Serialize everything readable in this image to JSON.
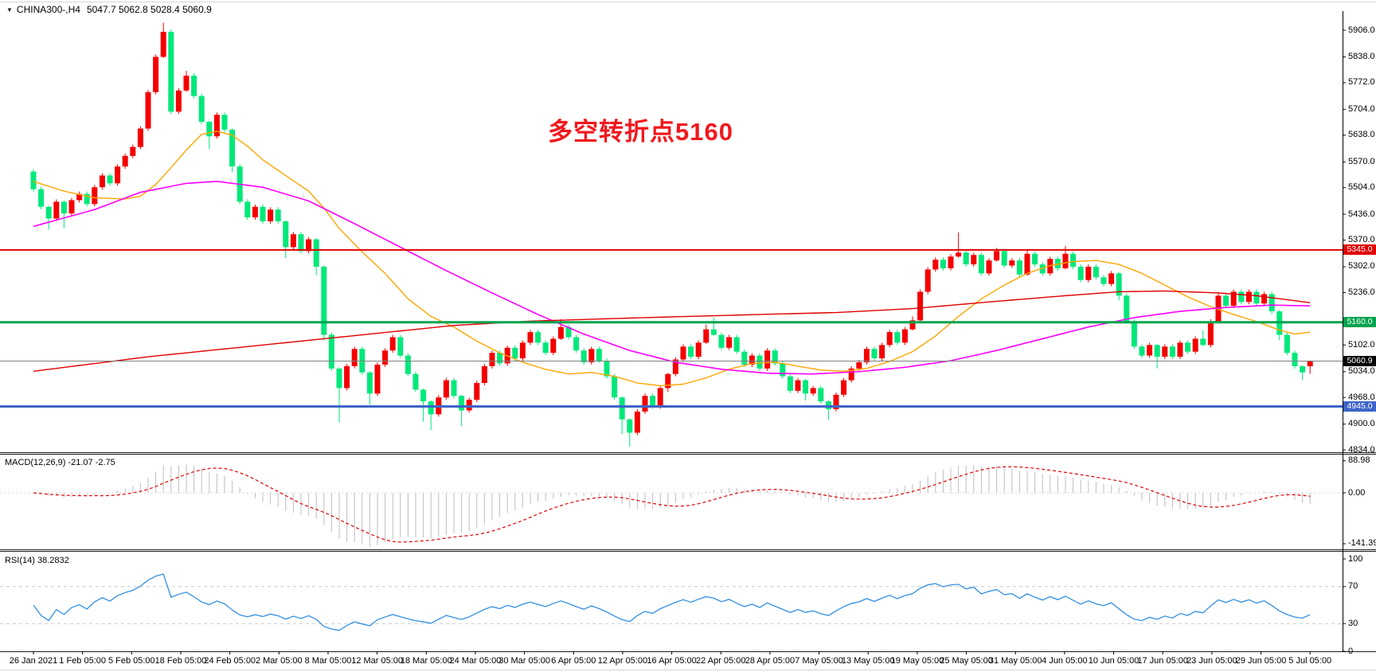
{
  "header": {
    "collapse_icon": "▼",
    "symbol_timeframe": "CHINA300-,H4",
    "ohlc_readout": "5047.7 5062.8 5028.4 5060.9"
  },
  "annotation": {
    "text": "多空转折点5160",
    "color": "#f1181d"
  },
  "macd_panel": {
    "legend": "MACD(12,26,9) -21.07 -2.75",
    "scale_labels": [
      {
        "text": "88.98",
        "value": 88.98
      },
      {
        "text": "0.00",
        "value": 0
      },
      {
        "text": "-141.39",
        "value": -141.39
      }
    ]
  },
  "rsi_panel": {
    "legend": "RSI(14) 38.2832",
    "scale_labels": [
      {
        "text": "100",
        "value": 100
      },
      {
        "text": "70",
        "value": 70
      },
      {
        "text": "30",
        "value": 30
      },
      {
        "text": "0",
        "value": 0
      }
    ]
  },
  "y_axis": {
    "labels": [
      "5906.0",
      "5838.0",
      "5772.0",
      "5704.0",
      "5638.0",
      "5570.0",
      "5504.0",
      "5436.0",
      "5370.0",
      "5302.0",
      "5236.0",
      "5102.0",
      "5034.0",
      "4968.0",
      "4900.0",
      "4834.0"
    ]
  },
  "chart_data": {
    "type": "candlestick",
    "symbol": "CHINA300-",
    "timeframe": "H4",
    "title": "CHINA300-,H4",
    "current_price": 5060.9,
    "price_range": {
      "top": 5906.0,
      "bottom": 4834.0
    },
    "x_labels": [
      "26 Jan 2021",
      "1 Feb 05:00",
      "5 Feb 05:00",
      "18 Feb 05:00",
      "24 Feb 05:00",
      "2 Mar 05:00",
      "8 Mar 05:00",
      "12 Mar 05:00",
      "18 Mar 05:00",
      "24 Mar 05:00",
      "30 Mar 05:00",
      "6 Apr 05:00",
      "12 Apr 05:00",
      "16 Apr 05:00",
      "22 Apr 05:00",
      "28 Apr 05:00",
      "7 May 05:00",
      "13 May 05:00",
      "19 May 05:00",
      "25 May 05:00",
      "31 May 05:00",
      "4 Jun 05:00",
      "10 Jun 05:00",
      "17 Jun 05:00",
      "23 Jun 05:00",
      "29 Jun 05:00",
      "5 Jul 05:00"
    ],
    "levels": [
      {
        "label": "5345.0",
        "value": 5345.0,
        "color": "#e00000",
        "badge": "#e00000",
        "width": 2,
        "role": "resistance-line"
      },
      {
        "label": "5160.0",
        "value": 5160.0,
        "color": "#00a34e",
        "badge": "#00a34e",
        "width": 3,
        "role": "pivot-line"
      },
      {
        "label": "5060.9",
        "value": 5060.9,
        "color": "#808080",
        "badge": "#000000",
        "width": 1,
        "role": "current-price-line"
      },
      {
        "label": "4945.0",
        "value": 4945.0,
        "color": "#3e64c8",
        "badge": "#3e64c8",
        "width": 3,
        "role": "support-line"
      }
    ],
    "colors": {
      "bull": "#f40000",
      "bear": "#00e87a",
      "ma_fast": "#ffa500",
      "ma_mid": "#ff00ff",
      "ma_slow": "#e00000",
      "macd_hist": "#bdbdbd",
      "macd_signal": "#e00000",
      "rsi_line": "#338fe0",
      "rsi_grid": "#c9c9c9"
    },
    "candles": {
      "first_open": 5545,
      "closes": [
        5500,
        5455,
        5425,
        5468,
        5438,
        5472,
        5488,
        5462,
        5505,
        5535,
        5515,
        5558,
        5585,
        5608,
        5655,
        5748,
        5838,
        5902,
        5698,
        5752,
        5790,
        5738,
        5672,
        5635,
        5690,
        5652,
        5558,
        5468,
        5428,
        5455,
        5418,
        5448,
        5418,
        5352,
        5385,
        5342,
        5372,
        5302,
        5128,
        5042,
        4992,
        5048,
        5092,
        5032,
        4978,
        5052,
        5088,
        5122,
        5075,
        5028,
        4988,
        4958,
        4925,
        4968,
        5012,
        4972,
        4935,
        4962,
        5005,
        5048,
        5082,
        5055,
        5095,
        5068,
        5108,
        5135,
        5108,
        5082,
        5118,
        5148,
        5122,
        5088,
        5058,
        5092,
        5062,
        5022,
        4968,
        4912,
        4878,
        4932,
        4972,
        4945,
        4992,
        5028,
        5065,
        5098,
        5072,
        5108,
        5142,
        5128,
        5095,
        5122,
        5085,
        5052,
        5075,
        5042,
        5088,
        5055,
        5022,
        4985,
        5012,
        4978,
        4992,
        4958,
        4938,
        4975,
        5012,
        5042,
        5058,
        5092,
        5068,
        5102,
        5135,
        5108,
        5142,
        5165,
        5238,
        5295,
        5320,
        5298,
        5328,
        5338,
        5308,
        5332,
        5285,
        5318,
        5342,
        5305,
        5318,
        5282,
        5335,
        5308,
        5285,
        5322,
        5298,
        5335,
        5302,
        5268,
        5302,
        5275,
        5258,
        5285,
        5228,
        5162,
        5098,
        5075,
        5102,
        5072,
        5098,
        5072,
        5108,
        5085,
        5118,
        5102,
        5162,
        5228,
        5202,
        5238,
        5212,
        5238,
        5208,
        5232,
        5188,
        5128,
        5082,
        5048,
        5032,
        5060.9
      ],
      "default_wick": [
        6,
        6
      ],
      "wick_overrides": {
        "2": [
          3,
          28
        ],
        "4": [
          3,
          38
        ],
        "17": [
          23,
          3
        ],
        "20": [
          12,
          3
        ],
        "23": [
          3,
          33
        ],
        "26": [
          3,
          15
        ],
        "33": [
          3,
          28
        ],
        "37": [
          3,
          22
        ],
        "38": [
          3,
          15
        ],
        "40": [
          3,
          88
        ],
        "44": [
          3,
          28
        ],
        "51": [
          3,
          52
        ],
        "52": [
          3,
          40
        ],
        "56": [
          3,
          40
        ],
        "69": [
          20,
          3
        ],
        "77": [
          3,
          38
        ],
        "78": [
          3,
          36
        ],
        "83": [
          3,
          10
        ],
        "88": [
          12,
          3
        ],
        "89": [
          30,
          3
        ],
        "101": [
          3,
          18
        ],
        "104": [
          3,
          28
        ],
        "115": [
          10,
          3
        ],
        "121": [
          52,
          3
        ],
        "126": [
          8,
          3
        ],
        "130": [
          10,
          3
        ],
        "135": [
          20,
          3
        ],
        "142": [
          3,
          12
        ],
        "147": [
          3,
          30
        ],
        "153": [
          22,
          3
        ],
        "155": [
          10,
          3
        ],
        "163": [
          3,
          14
        ],
        "166": [
          3,
          20
        ]
      },
      "last": {
        "open": 5047.7,
        "high": 5062.8,
        "low": 5028.4,
        "close": 5060.9
      }
    },
    "overlays": {
      "ma_fast": [
        [
          0,
          5520
        ],
        [
          4,
          5495
        ],
        [
          8,
          5478
        ],
        [
          12,
          5475
        ],
        [
          14,
          5482
        ],
        [
          16,
          5512
        ],
        [
          18,
          5555
        ],
        [
          20,
          5600
        ],
        [
          22,
          5640
        ],
        [
          24,
          5648
        ],
        [
          26,
          5638
        ],
        [
          28,
          5610
        ],
        [
          30,
          5575
        ],
        [
          33,
          5535
        ],
        [
          36,
          5495
        ],
        [
          38,
          5452
        ],
        [
          40,
          5400
        ],
        [
          43,
          5340
        ],
        [
          46,
          5285
        ],
        [
          49,
          5220
        ],
        [
          52,
          5175
        ],
        [
          55,
          5148
        ],
        [
          58,
          5112
        ],
        [
          61,
          5082
        ],
        [
          64,
          5058
        ],
        [
          67,
          5040
        ],
        [
          70,
          5028
        ],
        [
          73,
          5032
        ],
        [
          76,
          5022
        ],
        [
          79,
          5005
        ],
        [
          82,
          4998
        ],
        [
          85,
          5002
        ],
        [
          88,
          5018
        ],
        [
          91,
          5040
        ],
        [
          94,
          5055
        ],
        [
          97,
          5058
        ],
        [
          100,
          5048
        ],
        [
          103,
          5038
        ],
        [
          106,
          5035
        ],
        [
          109,
          5042
        ],
        [
          112,
          5060
        ],
        [
          115,
          5085
        ],
        [
          118,
          5125
        ],
        [
          121,
          5175
        ],
        [
          124,
          5220
        ],
        [
          127,
          5255
        ],
        [
          130,
          5285
        ],
        [
          133,
          5305
        ],
        [
          136,
          5315
        ],
        [
          139,
          5318
        ],
        [
          142,
          5308
        ],
        [
          145,
          5285
        ],
        [
          148,
          5255
        ],
        [
          151,
          5225
        ],
        [
          154,
          5200
        ],
        [
          157,
          5180
        ],
        [
          160,
          5162
        ],
        [
          163,
          5140
        ],
        [
          165,
          5130
        ],
        [
          167,
          5135
        ]
      ],
      "ma_mid": [
        [
          0,
          5405
        ],
        [
          8,
          5448
        ],
        [
          14,
          5492
        ],
        [
          20,
          5515
        ],
        [
          24,
          5520
        ],
        [
          30,
          5505
        ],
        [
          36,
          5470
        ],
        [
          42,
          5412
        ],
        [
          48,
          5352
        ],
        [
          54,
          5292
        ],
        [
          60,
          5235
        ],
        [
          66,
          5180
        ],
        [
          72,
          5130
        ],
        [
          78,
          5088
        ],
        [
          84,
          5058
        ],
        [
          90,
          5040
        ],
        [
          96,
          5030
        ],
        [
          102,
          5028
        ],
        [
          108,
          5034
        ],
        [
          114,
          5045
        ],
        [
          120,
          5062
        ],
        [
          126,
          5088
        ],
        [
          132,
          5118
        ],
        [
          138,
          5148
        ],
        [
          144,
          5172
        ],
        [
          150,
          5188
        ],
        [
          156,
          5198
        ],
        [
          162,
          5204
        ],
        [
          167,
          5202
        ]
      ],
      "ma_slow": [
        [
          0,
          5035
        ],
        [
          15,
          5072
        ],
        [
          30,
          5102
        ],
        [
          45,
          5132
        ],
        [
          55,
          5152
        ],
        [
          65,
          5163
        ],
        [
          80,
          5172
        ],
        [
          95,
          5180
        ],
        [
          105,
          5185
        ],
        [
          115,
          5195
        ],
        [
          125,
          5212
        ],
        [
          135,
          5228
        ],
        [
          142,
          5238
        ],
        [
          148,
          5240
        ],
        [
          155,
          5235
        ],
        [
          160,
          5228
        ],
        [
          167,
          5210
        ]
      ]
    },
    "indicators": {
      "macd": {
        "fast": 12,
        "slow": 26,
        "signal": 9,
        "current_main": -21.07,
        "current_signal": -2.75
      },
      "rsi": {
        "period": 14,
        "current": 38.2832,
        "levels": [
          70,
          30
        ]
      }
    }
  }
}
